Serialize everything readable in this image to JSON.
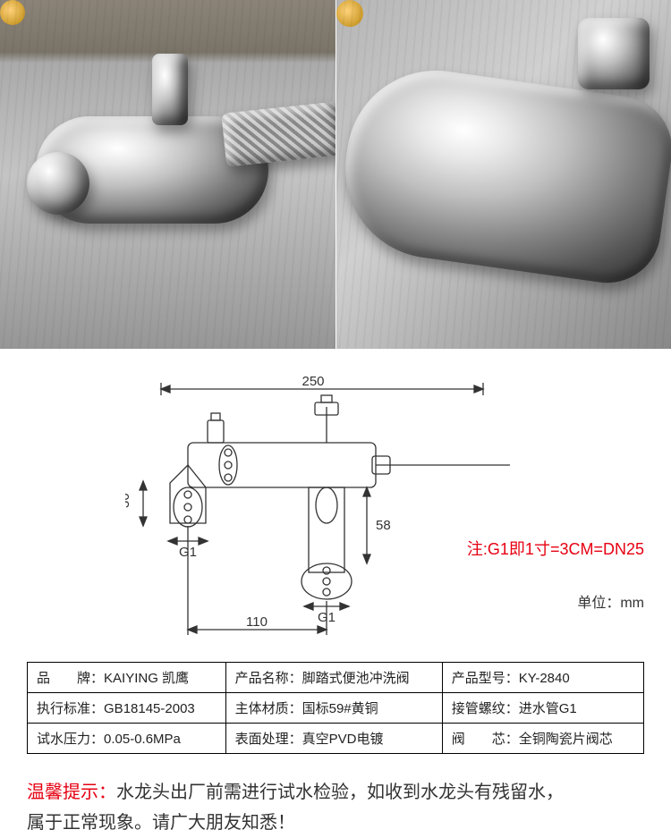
{
  "photos": {
    "left_alt": "product-photo-angle-1",
    "right_alt": "product-photo-angle-2"
  },
  "diagram": {
    "dim_width": "250",
    "dim_height_left": "30",
    "dim_height_mid": "58",
    "dim_bottom": "110",
    "thread_label": "G1",
    "note_text": "注:G1即1寸=3CM=DN25",
    "unit_text": "单位：mm",
    "stroke_color": "#333333",
    "dim_font_size": 15
  },
  "spec": {
    "rows": [
      [
        {
          "label": "品　　牌：",
          "value": "KAIYING 凯鹰"
        },
        {
          "label": "产品名称：",
          "value": "脚踏式便池冲洗阀"
        },
        {
          "label": "产品型号：",
          "value": "KY-2840"
        }
      ],
      [
        {
          "label": "执行标准：",
          "value": "GB18145-2003"
        },
        {
          "label": "主体材质：",
          "value": "国标59#黄铜"
        },
        {
          "label": "接管螺纹：",
          "value": "进水管G1"
        }
      ],
      [
        {
          "label": "试水压力：",
          "value": "0.05-0.6MPa"
        },
        {
          "label": "表面处理：",
          "value": "真空PVD电镀"
        },
        {
          "label": "阀　　芯：",
          "value": "全铜陶瓷片阀芯"
        }
      ]
    ]
  },
  "tip": {
    "prefix": "温馨提示：",
    "body_line1": "水龙头出厂前需进行试水检验，如收到水龙头有残留水，",
    "body_line2": "属于正常现象。请广大朋友知悉！"
  }
}
